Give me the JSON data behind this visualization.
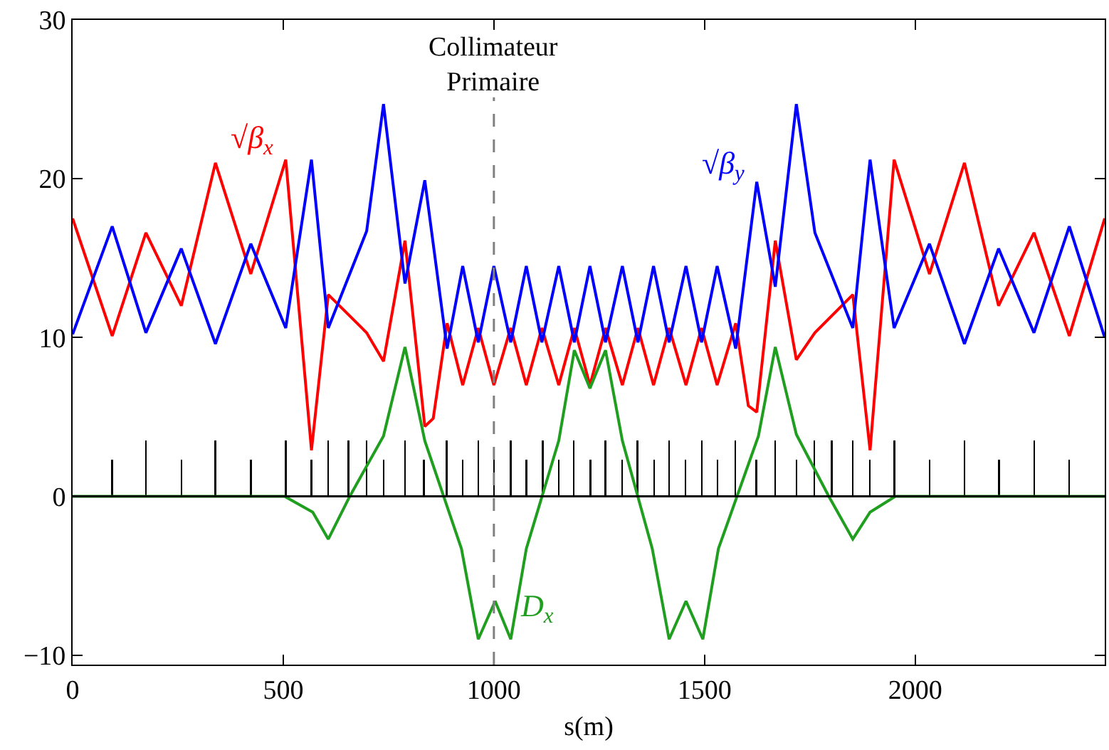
{
  "chart_data": {
    "type": "line",
    "xlabel": "s(m)",
    "xlim": [
      0,
      2450
    ],
    "xticks": [
      0,
      500,
      1000,
      1500,
      2000
    ],
    "ylim": [
      -10.6,
      30
    ],
    "yticks": [
      {
        "value": -10,
        "label": "−10"
      },
      0,
      10,
      20,
      30
    ],
    "grid": false,
    "legend": false,
    "marker": "none",
    "line_style": "solid",
    "series": [
      {
        "name": "√β$_{x}$",
        "color": "#ff0000",
        "x": [
          0,
          94,
          174,
          258,
          339,
          423,
          506,
          567,
          607,
          698,
          738,
          789,
          836,
          856,
          889,
          926,
          963,
          1000,
          1040,
          1077,
          1114,
          1154,
          1191,
          1228,
          1265,
          1305,
          1342,
          1379,
          1416,
          1456,
          1493,
          1530,
          1574,
          1604,
          1624,
          1668,
          1718,
          1762,
          1852,
          1893,
          1950,
          2034,
          2117,
          2198,
          2282,
          2366,
          2450
        ],
        "values": [
          17.5,
          10.1,
          16.6,
          12.0,
          21.0,
          14.0,
          21.2,
          2.9,
          12.7,
          10.3,
          8.5,
          16.1,
          4.4,
          4.9,
          10.9,
          7,
          10.6,
          7,
          10.6,
          7,
          10.6,
          7,
          10.6,
          7,
          10.6,
          7,
          10.6,
          7,
          10.6,
          7,
          10.6,
          7,
          10.9,
          5.7,
          5.3,
          16.1,
          8.6,
          10.3,
          12.7,
          2.9,
          21.2,
          14.0,
          21.0,
          12.0,
          16.6,
          10.1,
          17.5
        ]
      },
      {
        "name": "√β$_{y}$",
        "color": "#0000ff",
        "x": [
          0,
          94,
          174,
          258,
          339,
          423,
          506,
          567,
          607,
          698,
          738,
          789,
          836,
          889,
          926,
          963,
          1000,
          1040,
          1077,
          1114,
          1154,
          1191,
          1228,
          1265,
          1305,
          1342,
          1379,
          1416,
          1456,
          1493,
          1530,
          1574,
          1624,
          1668,
          1718,
          1762,
          1852,
          1893,
          1950,
          2034,
          2117,
          2198,
          2282,
          2366,
          2450
        ],
        "values": [
          10.2,
          17.0,
          10.3,
          15.6,
          9.6,
          15.9,
          10.6,
          21.2,
          10.6,
          16.7,
          24.7,
          13.4,
          19.9,
          9.3,
          14.5,
          9.7,
          14.5,
          9.7,
          14.5,
          9.7,
          14.5,
          9.7,
          14.5,
          9.7,
          14.5,
          9.7,
          14.5,
          9.7,
          14.5,
          9.7,
          14.5,
          9.3,
          19.8,
          13.2,
          24.7,
          16.6,
          10.6,
          21.2,
          10.6,
          15.9,
          9.6,
          15.6,
          10.3,
          17.0,
          10.0
        ]
      },
      {
        "name": "D$_{x}$",
        "color": "#1f9e1f",
        "x": [
          0,
          503,
          570,
          607,
          658,
          738,
          789,
          836,
          923,
          963,
          1003,
          1040,
          1077,
          1154,
          1191,
          1228,
          1265,
          1305,
          1376,
          1416,
          1456,
          1496,
          1533,
          1628,
          1668,
          1718,
          1795,
          1852,
          1893,
          1953,
          2450
        ],
        "values": [
          0,
          0,
          -1.0,
          -2.7,
          0,
          3.8,
          9.4,
          3.5,
          -3.3,
          -9.0,
          -6.6,
          -9.0,
          -3.3,
          3.5,
          9.2,
          6.8,
          9.2,
          3.5,
          -3.3,
          -9.0,
          -6.6,
          -9.0,
          -3.3,
          3.8,
          9.4,
          3.9,
          0,
          -2.7,
          -1.0,
          0,
          0
        ]
      },
      {
        "type": "bar",
        "color": "#000000",
        "x": [
          94,
          174,
          258,
          339,
          423,
          506,
          567,
          607,
          655,
          698,
          738,
          789,
          834,
          888,
          926,
          963,
          1000,
          1040,
          1077,
          1116,
          1154,
          1190,
          1229,
          1265,
          1304,
          1341,
          1380,
          1416,
          1455,
          1494,
          1531,
          1573,
          1623,
          1668,
          1718,
          1761,
          1802,
          1852,
          1892,
          1951,
          2034,
          2117,
          2199,
          2283,
          2366
        ],
        "values": [
          2.3,
          3.5,
          2.3,
          3.5,
          2.3,
          3.5,
          2.3,
          3.5,
          3.5,
          3.5,
          2.3,
          3.5,
          2.3,
          3.5,
          2.3,
          3.5,
          2.3,
          3.5,
          2.3,
          3.5,
          2.3,
          3.5,
          2.3,
          3.5,
          2.3,
          3.5,
          2.3,
          3.5,
          2.3,
          3.5,
          2.3,
          3.5,
          2.3,
          3.5,
          2.3,
          3.5,
          3.5,
          3.5,
          2.3,
          3.5,
          2.3,
          3.5,
          2.3,
          3.5,
          2.3
        ]
      }
    ],
    "ref_lines": [
      {
        "axis": "x",
        "value": 1000,
        "label": "Collimateur\nPrimaire",
        "color": "#808080",
        "line_style": "dashed"
      },
      {
        "axis": "y",
        "value": 0,
        "color": "#000000",
        "line_style": "solid"
      }
    ]
  }
}
